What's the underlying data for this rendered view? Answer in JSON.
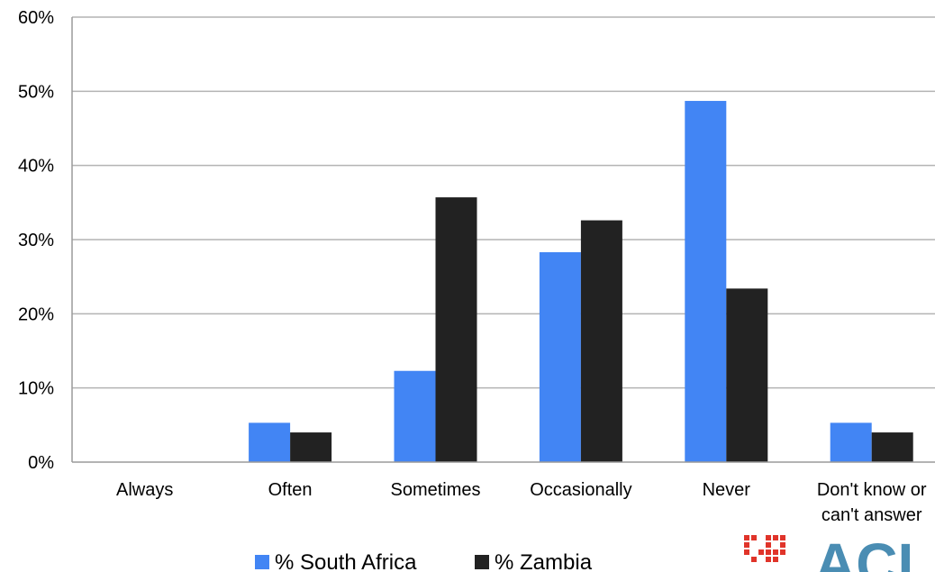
{
  "chart_data": {
    "type": "bar",
    "categories": [
      "Always",
      "Often",
      "Sometimes",
      "Occasionally",
      "Never",
      "Don't know or can't answer"
    ],
    "category_lines": [
      [
        "Always"
      ],
      [
        "Often"
      ],
      [
        "Sometimes"
      ],
      [
        "Occasionally"
      ],
      [
        "Never"
      ],
      [
        "Don't know or",
        "can't answer"
      ]
    ],
    "series": [
      {
        "name": "% South Africa",
        "color": "#4285f4",
        "values": [
          0,
          5.3,
          12.3,
          28.3,
          48.7,
          5.3
        ]
      },
      {
        "name": "% Zambia",
        "color": "#222222",
        "values": [
          0,
          4.0,
          35.7,
          32.6,
          23.4,
          4.0
        ]
      }
    ],
    "y_ticks": [
      "0%",
      "10%",
      "20%",
      "30%",
      "40%",
      "50%",
      "60%"
    ],
    "ylim": [
      0,
      60
    ],
    "grid": true,
    "legend": "bottom",
    "title": "",
    "xlabel": "",
    "ylabel": ""
  },
  "logo": {
    "text": "ACI",
    "mark_color": "#e0342a",
    "text_color": "#4a8db3"
  }
}
